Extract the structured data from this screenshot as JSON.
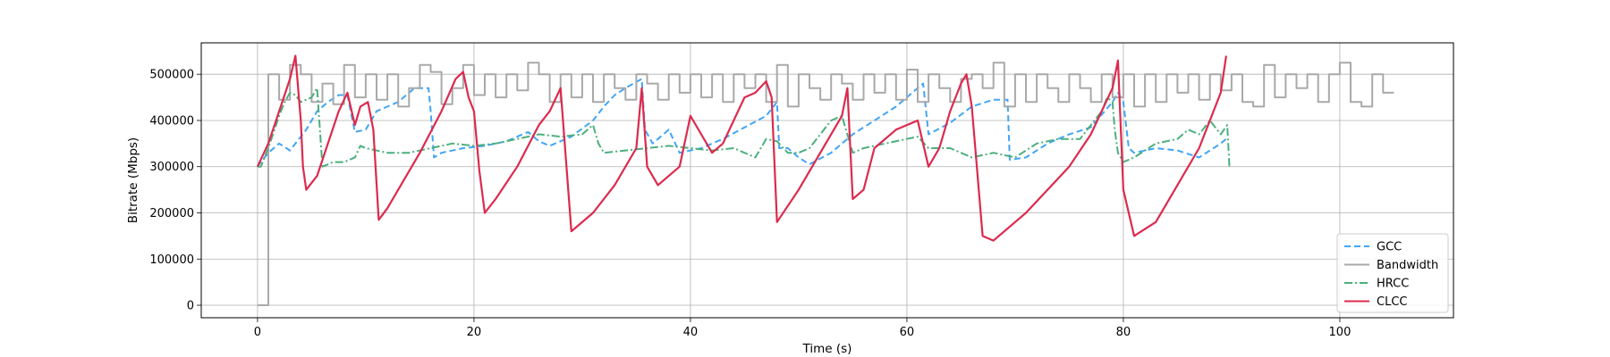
{
  "chart_data": {
    "type": "line",
    "xlabel": "Time (s)",
    "ylabel": "Bitrate (Mbps)",
    "xlim": [
      -5.2,
      110.5
    ],
    "ylim": [
      -27000,
      568000
    ],
    "grid": true,
    "legend_position": "lower-right",
    "x_ticks": [
      0,
      20,
      40,
      60,
      80,
      100
    ],
    "y_ticks": [
      0,
      100000,
      200000,
      300000,
      400000,
      500000
    ],
    "series": [
      {
        "name": "GCC",
        "color": "#42a5f5",
        "style": "dashed",
        "x": [
          0,
          0.3,
          1,
          2,
          3,
          3.5,
          4.5,
          5.5,
          6.5,
          7.5,
          8.3,
          9,
          10,
          11,
          13,
          14.5,
          15.8,
          16,
          16.3,
          17,
          19,
          21,
          23,
          25,
          26,
          27,
          29,
          31,
          32,
          33,
          34,
          35.5,
          35.8,
          36.5,
          38,
          39,
          41,
          43,
          45,
          47,
          48,
          48.2,
          49,
          50,
          51,
          53,
          55,
          57,
          59,
          61,
          61.5,
          62,
          64,
          66,
          68,
          69.3,
          69.5,
          71,
          73,
          75,
          77,
          79,
          79.5,
          80,
          80.5,
          81,
          83,
          85,
          87,
          89,
          89.5
        ],
        "y": [
          300000,
          310000,
          330000,
          350000,
          335000,
          350000,
          380000,
          420000,
          440000,
          455000,
          455000,
          375000,
          380000,
          420000,
          440000,
          470000,
          470000,
          420000,
          320000,
          330000,
          340000,
          345000,
          355000,
          375000,
          355000,
          345000,
          365000,
          400000,
          430000,
          455000,
          470000,
          490000,
          380000,
          350000,
          380000,
          330000,
          340000,
          360000,
          385000,
          410000,
          440000,
          340000,
          340000,
          320000,
          305000,
          330000,
          370000,
          400000,
          430000,
          470000,
          480000,
          370000,
          395000,
          430000,
          445000,
          445000,
          315000,
          320000,
          350000,
          370000,
          385000,
          440000,
          460000,
          440000,
          340000,
          330000,
          340000,
          335000,
          320000,
          350000,
          360000
        ]
      },
      {
        "name": "Bandwidth",
        "color": "#a9a9a9",
        "style": "step",
        "x": [
          0,
          1,
          2,
          3,
          4,
          5,
          6,
          7,
          8,
          9,
          10,
          11,
          12,
          13,
          14,
          15,
          16,
          17,
          18,
          19,
          20,
          21,
          22,
          23,
          24,
          25,
          26,
          27,
          28,
          29,
          30,
          31,
          32,
          33,
          34,
          35,
          36,
          37,
          38,
          39,
          40,
          41,
          42,
          43,
          44,
          45,
          46,
          47,
          48,
          49,
          50,
          51,
          52,
          53,
          54,
          55,
          56,
          57,
          58,
          59,
          60,
          61,
          62,
          63,
          64,
          65,
          66,
          67,
          68,
          69,
          70,
          71,
          72,
          73,
          74,
          75,
          76,
          77,
          78,
          79,
          80,
          81,
          82,
          83,
          84,
          85,
          86,
          87,
          88,
          89,
          90,
          91,
          92,
          93,
          94,
          95,
          96,
          97,
          98,
          99,
          100,
          101,
          102,
          103,
          104,
          105
        ],
        "y": [
          0,
          500000,
          445000,
          520000,
          500000,
          440000,
          480000,
          435000,
          520000,
          450000,
          500000,
          445000,
          500000,
          430000,
          470000,
          520000,
          505000,
          435000,
          470000,
          520000,
          455000,
          500000,
          450000,
          500000,
          465000,
          525000,
          500000,
          440000,
          500000,
          450000,
          500000,
          440000,
          500000,
          470000,
          445000,
          500000,
          480000,
          445000,
          500000,
          460000,
          500000,
          450000,
          500000,
          440000,
          500000,
          470000,
          500000,
          440000,
          520000,
          430000,
          500000,
          470000,
          445000,
          500000,
          480000,
          445000,
          500000,
          460000,
          500000,
          445000,
          510000,
          440000,
          500000,
          470000,
          440000,
          490000,
          500000,
          470000,
          525000,
          430000,
          500000,
          440000,
          500000,
          470000,
          440000,
          500000,
          470000,
          440000,
          500000,
          450000,
          500000,
          430000,
          500000,
          440000,
          500000,
          460000,
          500000,
          445000,
          500000,
          465000,
          500000,
          440000,
          430000,
          520000,
          450000,
          500000,
          470000,
          500000,
          440000,
          500000,
          525000,
          440000,
          430000,
          500000,
          460000,
          460000
        ]
      },
      {
        "name": "HRCC",
        "color": "#4caf7d",
        "style": "dashdot",
        "x": [
          0,
          0.3,
          1,
          2,
          2.5,
          3,
          3.5,
          4,
          5,
          5.5,
          6,
          7,
          8,
          9,
          9.5,
          10,
          12,
          14,
          16,
          18,
          20,
          22,
          24,
          26,
          28,
          30,
          31,
          31.5,
          32,
          34,
          36,
          38,
          40,
          42,
          44,
          46,
          47,
          48,
          49,
          50,
          51,
          52,
          53,
          54,
          55,
          56,
          58,
          60,
          61,
          62,
          64,
          66,
          68,
          70,
          72,
          74,
          76,
          78,
          78.5,
          79,
          79.2,
          79.5,
          80,
          81,
          83,
          85,
          86,
          87,
          88,
          89,
          89.6,
          89.8
        ],
        "y": [
          300000,
          300000,
          340000,
          410000,
          440000,
          460000,
          455000,
          440000,
          450000,
          470000,
          300000,
          310000,
          310000,
          320000,
          345000,
          340000,
          330000,
          330000,
          340000,
          350000,
          345000,
          350000,
          360000,
          370000,
          365000,
          370000,
          390000,
          350000,
          330000,
          335000,
          340000,
          345000,
          340000,
          335000,
          340000,
          320000,
          360000,
          355000,
          330000,
          330000,
          340000,
          370000,
          400000,
          410000,
          330000,
          340000,
          350000,
          360000,
          365000,
          340000,
          340000,
          320000,
          330000,
          320000,
          350000,
          360000,
          360000,
          420000,
          450000,
          440000,
          380000,
          330000,
          310000,
          320000,
          350000,
          360000,
          380000,
          370000,
          400000,
          370000,
          390000,
          300000
        ]
      },
      {
        "name": "CLCC",
        "color": "#dc2a4e",
        "style": "solid",
        "x": [
          0,
          1,
          2,
          3,
          3.5,
          4,
          4.2,
          4.5,
          5.5,
          6.5,
          7.5,
          8.3,
          9,
          9.5,
          10.2,
          10.7,
          11.2,
          12,
          13,
          15,
          17,
          18.3,
          19,
          19.5,
          20,
          20.5,
          21,
          22,
          24,
          26,
          27,
          28,
          29,
          31,
          33,
          35,
          35.5,
          36,
          37,
          39,
          40,
          41,
          42,
          43,
          44,
          45,
          46,
          47,
          47.5,
          48,
          50,
          52,
          54,
          54.5,
          55,
          56,
          57,
          59,
          61,
          62,
          63,
          64,
          65,
          65.5,
          66,
          67,
          68,
          69,
          71,
          73,
          75,
          77,
          79,
          79.5,
          80,
          81,
          83,
          85,
          87,
          89,
          89.5
        ],
        "y": [
          300000,
          350000,
          420000,
          490000,
          540000,
          400000,
          300000,
          250000,
          280000,
          350000,
          420000,
          460000,
          390000,
          430000,
          440000,
          380000,
          185000,
          210000,
          250000,
          330000,
          420000,
          490000,
          505000,
          450000,
          420000,
          290000,
          200000,
          230000,
          300000,
          390000,
          420000,
          470000,
          160000,
          200000,
          260000,
          340000,
          470000,
          300000,
          260000,
          300000,
          410000,
          370000,
          330000,
          350000,
          400000,
          450000,
          460000,
          485000,
          450000,
          180000,
          250000,
          330000,
          410000,
          470000,
          230000,
          250000,
          340000,
          380000,
          400000,
          300000,
          340000,
          420000,
          480000,
          500000,
          430000,
          150000,
          140000,
          160000,
          200000,
          250000,
          300000,
          370000,
          470000,
          530000,
          250000,
          150000,
          180000,
          260000,
          340000,
          460000,
          540000
        ]
      }
    ]
  }
}
